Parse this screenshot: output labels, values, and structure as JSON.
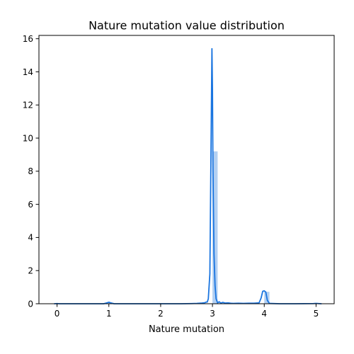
{
  "chart_data": {
    "type": "bar",
    "title": "Nature mutation value distribution",
    "xlabel": "Nature mutation",
    "ylabel": "",
    "xlim": [
      -0.35,
      5.35
    ],
    "ylim": [
      0,
      16.2
    ],
    "x_ticks": [
      0,
      1,
      2,
      3,
      4,
      5
    ],
    "y_ticks": [
      0,
      2,
      4,
      6,
      8,
      10,
      12,
      14,
      16
    ],
    "grid": false,
    "legend": "none",
    "histogram": {
      "bin_width": 0.1,
      "bins": [
        {
          "x_start": 0.0,
          "x_end": 0.1,
          "density": 0.02
        },
        {
          "x_start": 1.0,
          "x_end": 1.1,
          "density": 0.05
        },
        {
          "x_start": 3.0,
          "x_end": 3.1,
          "density": 9.2
        },
        {
          "x_start": 4.0,
          "x_end": 4.1,
          "density": 0.72
        },
        {
          "x_start": 5.0,
          "x_end": 5.1,
          "density": 0.02
        }
      ]
    },
    "kde": {
      "x": [
        -0.05,
        0.0,
        0.05,
        0.5,
        0.9,
        0.97,
        1.0,
        1.03,
        1.1,
        1.5,
        2.0,
        2.4,
        2.6,
        2.7,
        2.75,
        2.8,
        2.85,
        2.88,
        2.9,
        2.92,
        2.95,
        2.97,
        2.99,
        3.0,
        3.01,
        3.03,
        3.05,
        3.07,
        3.1,
        3.13,
        3.16,
        3.2,
        3.25,
        3.3,
        3.35,
        3.4,
        3.5,
        3.6,
        3.7,
        3.8,
        3.9,
        3.94,
        3.97,
        4.0,
        4.03,
        4.06,
        4.1,
        4.3,
        4.6,
        4.95,
        5.0,
        5.05,
        5.1
      ],
      "y": [
        0.0,
        0.01,
        0.0,
        0.0,
        0.0,
        0.06,
        0.09,
        0.06,
        0.0,
        0.0,
        0.0,
        0.0,
        0.01,
        0.02,
        0.03,
        0.04,
        0.06,
        0.1,
        0.1,
        0.3,
        1.8,
        8.5,
        15.4,
        13.0,
        8.0,
        3.0,
        1.1,
        0.3,
        0.05,
        0.12,
        0.04,
        0.08,
        0.04,
        0.05,
        0.03,
        0.02,
        0.03,
        0.02,
        0.03,
        0.03,
        0.05,
        0.35,
        0.75,
        0.78,
        0.7,
        0.2,
        0.02,
        0.0,
        0.0,
        0.01,
        0.02,
        0.01,
        0.0
      ]
    },
    "colors": {
      "line": "#1a75e0",
      "bar": "#b3d0f2",
      "axis": "#000000"
    }
  }
}
